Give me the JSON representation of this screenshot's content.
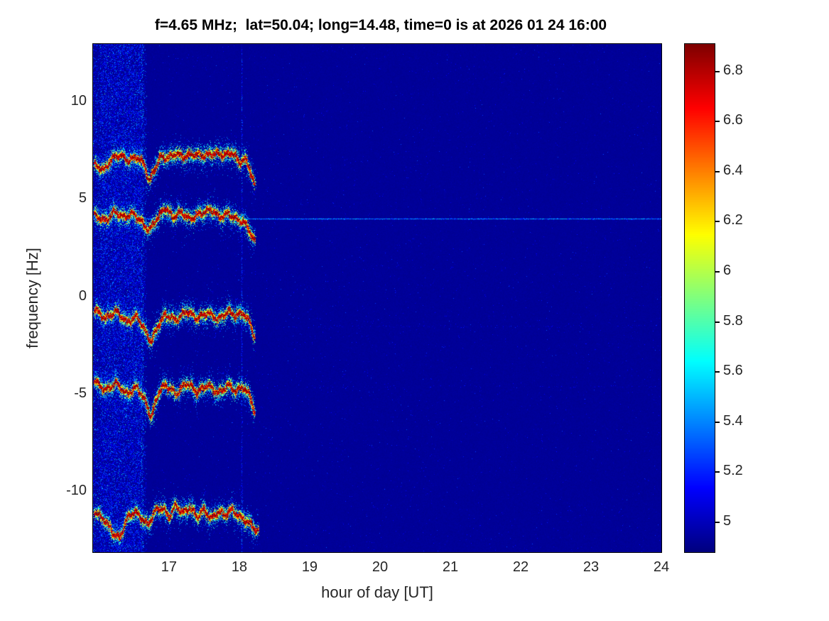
{
  "figure": {
    "title": "f=4.65 MHz;  lat=50.04; long=14.48, time=0 is at 2026 01 24 16:00"
  },
  "chart_data": {
    "type": "heatmap",
    "title": "f=4.65 MHz;  lat=50.04; long=14.48, time=0 is at 2026 01 24 16:00",
    "xlabel": "hour of day [UT]",
    "ylabel": "frequency [Hz]",
    "xlim": [
      15.92,
      24
    ],
    "ylim": [
      -13.1,
      13.0
    ],
    "xticks": [
      17,
      18,
      19,
      20,
      21,
      22,
      23,
      24
    ],
    "yticks": [
      10,
      5,
      0,
      -5,
      -10
    ],
    "grid": false,
    "colormap": "jet",
    "background_value": 4.93,
    "colorbar": {
      "position": "right",
      "clim": [
        4.88,
        6.91
      ],
      "ticks": [
        5,
        5.2,
        5.4,
        5.6,
        5.8,
        6,
        6.2,
        6.4,
        6.6,
        6.8
      ]
    },
    "colors": {
      "background_deep_blue": "#00008f",
      "axis_text": "#262626",
      "title_text": "#000000"
    },
    "signals": {
      "broadband_noise_band": {
        "t_start": 15.92,
        "t_end": 16.68,
        "mean_value": 5.25
      },
      "bright_noise_column_t": 16.62,
      "vertical_artifact_t": 18.04,
      "carrier_line": {
        "freq_hz": 4.0,
        "t_start": 15.92,
        "t_end": 24,
        "value": 5.4
      },
      "faint_artifacts_hz": [
        -1.5,
        -4.6
      ],
      "doppler_traces": [
        {
          "name": "trace-plus7hz",
          "points": [
            [
              15.94,
              6.8
            ],
            [
              16.08,
              6.5
            ],
            [
              16.18,
              7.1
            ],
            [
              16.3,
              7.3
            ],
            [
              16.42,
              7.0
            ],
            [
              16.55,
              7.2
            ],
            [
              16.65,
              6.8
            ],
            [
              16.72,
              5.9
            ],
            [
              16.8,
              6.6
            ],
            [
              16.88,
              7.2
            ],
            [
              17.0,
              7.15
            ],
            [
              17.1,
              7.4
            ],
            [
              17.2,
              7.2
            ],
            [
              17.35,
              7.35
            ],
            [
              17.5,
              7.25
            ],
            [
              17.65,
              7.4
            ],
            [
              17.8,
              7.3
            ],
            [
              17.9,
              7.45
            ],
            [
              18.0,
              6.9
            ],
            [
              18.08,
              7.1
            ],
            [
              18.15,
              6.6
            ],
            [
              18.22,
              5.7
            ]
          ]
        },
        {
          "name": "trace-plus4hz",
          "points": [
            [
              15.94,
              4.2
            ],
            [
              16.1,
              3.9
            ],
            [
              16.22,
              4.4
            ],
            [
              16.35,
              4.1
            ],
            [
              16.5,
              4.3
            ],
            [
              16.62,
              3.8
            ],
            [
              16.72,
              3.4
            ],
            [
              16.82,
              4.0
            ],
            [
              16.95,
              4.6
            ],
            [
              17.05,
              4.1
            ],
            [
              17.18,
              4.35
            ],
            [
              17.3,
              4.0
            ],
            [
              17.45,
              4.3
            ],
            [
              17.6,
              4.5
            ],
            [
              17.72,
              4.1
            ],
            [
              17.85,
              4.3
            ],
            [
              17.95,
              4.0
            ],
            [
              18.05,
              3.9
            ],
            [
              18.15,
              3.4
            ],
            [
              18.22,
              2.8
            ]
          ]
        },
        {
          "name": "trace-minus1hz",
          "points": [
            [
              15.94,
              -0.6
            ],
            [
              16.1,
              -1.1
            ],
            [
              16.25,
              -0.7
            ],
            [
              16.4,
              -1.3
            ],
            [
              16.55,
              -1.0
            ],
            [
              16.68,
              -1.9
            ],
            [
              16.75,
              -2.3
            ],
            [
              16.85,
              -1.4
            ],
            [
              16.95,
              -0.9
            ],
            [
              17.1,
              -1.2
            ],
            [
              17.25,
              -0.7
            ],
            [
              17.4,
              -1.1
            ],
            [
              17.55,
              -0.8
            ],
            [
              17.7,
              -1.15
            ],
            [
              17.85,
              -0.7
            ],
            [
              17.95,
              -1.0
            ],
            [
              18.05,
              -0.8
            ],
            [
              18.15,
              -1.3
            ],
            [
              18.22,
              -2.1
            ]
          ]
        },
        {
          "name": "trace-minus4p6hz",
          "points": [
            [
              15.94,
              -4.3
            ],
            [
              16.1,
              -4.8
            ],
            [
              16.25,
              -4.4
            ],
            [
              16.4,
              -5.0
            ],
            [
              16.55,
              -4.6
            ],
            [
              16.68,
              -5.5
            ],
            [
              16.75,
              -6.2
            ],
            [
              16.85,
              -4.9
            ],
            [
              16.95,
              -4.5
            ],
            [
              17.1,
              -5.0
            ],
            [
              17.25,
              -4.4
            ],
            [
              17.4,
              -4.9
            ],
            [
              17.55,
              -4.5
            ],
            [
              17.7,
              -4.95
            ],
            [
              17.85,
              -4.5
            ],
            [
              17.95,
              -4.85
            ],
            [
              18.05,
              -4.6
            ],
            [
              18.15,
              -5.1
            ],
            [
              18.22,
              -5.9
            ]
          ]
        },
        {
          "name": "trace-minus11hz",
          "points": [
            [
              15.94,
              -11.0
            ],
            [
              16.1,
              -11.5
            ],
            [
              16.2,
              -12.1
            ],
            [
              16.3,
              -12.4
            ],
            [
              16.4,
              -11.4
            ],
            [
              16.5,
              -11.0
            ],
            [
              16.6,
              -11.3
            ],
            [
              16.7,
              -11.7
            ],
            [
              16.8,
              -11.0
            ],
            [
              16.9,
              -10.8
            ],
            [
              17.0,
              -11.3
            ],
            [
              17.1,
              -10.7
            ],
            [
              17.2,
              -11.1
            ],
            [
              17.3,
              -10.8
            ],
            [
              17.4,
              -11.3
            ],
            [
              17.5,
              -10.9
            ],
            [
              17.6,
              -11.4
            ],
            [
              17.7,
              -11.0
            ],
            [
              17.8,
              -11.2
            ],
            [
              17.9,
              -10.9
            ],
            [
              18.0,
              -11.3
            ],
            [
              18.1,
              -11.5
            ],
            [
              18.2,
              -11.8
            ],
            [
              18.27,
              -12.1
            ]
          ]
        }
      ]
    }
  }
}
